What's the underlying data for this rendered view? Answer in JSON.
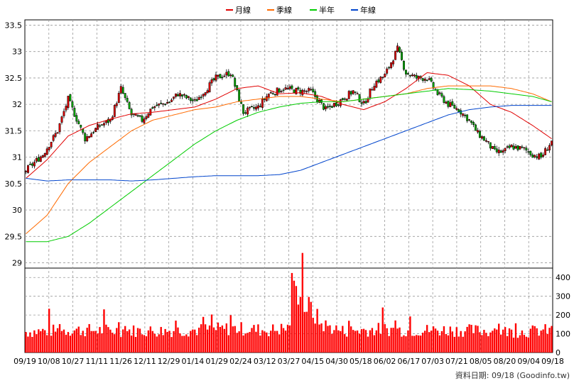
{
  "chart_data": {
    "type": "candlestick",
    "legend": [
      {
        "name": "月線",
        "color": "#e00000"
      },
      {
        "name": "季線",
        "color": "#ff6a00"
      },
      {
        "name": "半年",
        "color": "#00cc00"
      },
      {
        "name": "年線",
        "color": "#0044cc"
      }
    ],
    "legend_position": "top-center",
    "grid": true,
    "price_axis": {
      "ticks": [
        29,
        29.5,
        30,
        30.5,
        31,
        31.5,
        32,
        32.5,
        33,
        33.5
      ],
      "range": [
        28.9,
        33.6
      ]
    },
    "volume_axis": {
      "ticks": [
        0,
        100,
        200,
        300,
        400
      ],
      "range": [
        0,
        450
      ]
    },
    "x_tick_labels": [
      "09/19",
      "10/08",
      "10/27",
      "11/11",
      "11/26",
      "12/11",
      "12/29",
      "01/14",
      "01/29",
      "02/24",
      "03/12",
      "03/27",
      "04/15",
      "04/30",
      "05/18",
      "06/02",
      "06/17",
      "07/03",
      "07/21",
      "08/05",
      "08/20",
      "09/04",
      "09/18"
    ],
    "up_color": "#e00000",
    "down_color": "#00aa00",
    "volume_color": "#ff0000",
    "series": [
      {
        "name": "月線",
        "x": [
          0,
          10,
          20,
          30,
          40,
          50,
          60,
          70,
          80,
          90,
          100,
          110,
          120,
          130,
          140,
          150,
          160,
          170,
          180,
          190,
          200,
          210,
          220,
          230,
          240,
          249
        ],
        "values": [
          30.6,
          30.95,
          31.4,
          31.6,
          31.72,
          31.82,
          31.85,
          31.9,
          31.95,
          32.1,
          32.3,
          32.35,
          32.2,
          32.22,
          32.15,
          32.0,
          31.9,
          32.05,
          32.3,
          32.6,
          32.55,
          32.35,
          32.0,
          31.85,
          31.6,
          31.35
        ]
      },
      {
        "name": "季線",
        "x": [
          0,
          10,
          20,
          30,
          40,
          50,
          60,
          70,
          80,
          90,
          100,
          110,
          120,
          130,
          140,
          150,
          160,
          170,
          180,
          190,
          200,
          210,
          220,
          230,
          240,
          249
        ],
        "values": [
          29.55,
          29.9,
          30.5,
          30.9,
          31.2,
          31.5,
          31.7,
          31.8,
          31.9,
          31.95,
          32.05,
          32.1,
          32.15,
          32.15,
          32.1,
          32.05,
          32.1,
          32.15,
          32.2,
          32.3,
          32.35,
          32.35,
          32.35,
          32.3,
          32.2,
          32.05
        ]
      },
      {
        "name": "半年",
        "x": [
          0,
          10,
          20,
          30,
          40,
          50,
          60,
          70,
          80,
          90,
          100,
          110,
          120,
          130,
          140,
          150,
          160,
          170,
          180,
          190,
          200,
          210,
          220,
          230,
          240,
          249
        ],
        "values": [
          29.4,
          29.4,
          29.5,
          29.75,
          30.05,
          30.35,
          30.65,
          30.95,
          31.25,
          31.5,
          31.7,
          31.85,
          31.95,
          32.02,
          32.05,
          32.05,
          32.1,
          32.15,
          32.2,
          32.25,
          32.3,
          32.28,
          32.25,
          32.2,
          32.15,
          32.05
        ]
      },
      {
        "name": "年線",
        "x": [
          0,
          10,
          20,
          30,
          40,
          50,
          60,
          70,
          80,
          90,
          100,
          110,
          120,
          130,
          140,
          150,
          160,
          170,
          180,
          190,
          200,
          210,
          220,
          230,
          240,
          249
        ],
        "values": [
          30.6,
          30.55,
          30.57,
          30.57,
          30.57,
          30.55,
          30.57,
          30.6,
          30.63,
          30.65,
          30.65,
          30.65,
          30.67,
          30.75,
          30.9,
          31.05,
          31.2,
          31.35,
          31.5,
          31.65,
          31.8,
          31.9,
          31.95,
          31.98,
          31.98,
          31.98
        ]
      }
    ],
    "candle_anchor_closes": [
      [
        0,
        30.75
      ],
      [
        8,
        31.05
      ],
      [
        15,
        31.5
      ],
      [
        20,
        32.1
      ],
      [
        28,
        31.35
      ],
      [
        35,
        31.6
      ],
      [
        40,
        31.7
      ],
      [
        45,
        32.3
      ],
      [
        50,
        31.8
      ],
      [
        55,
        31.7
      ],
      [
        60,
        31.95
      ],
      [
        68,
        32.05
      ],
      [
        72,
        32.2
      ],
      [
        80,
        32.05
      ],
      [
        90,
        32.5
      ],
      [
        97,
        32.6
      ],
      [
        103,
        31.85
      ],
      [
        110,
        31.95
      ],
      [
        115,
        32.2
      ],
      [
        122,
        32.3
      ],
      [
        130,
        32.25
      ],
      [
        135,
        32.25
      ],
      [
        142,
        31.9
      ],
      [
        148,
        32.05
      ],
      [
        155,
        32.25
      ],
      [
        160,
        32.0
      ],
      [
        165,
        32.4
      ],
      [
        170,
        32.55
      ],
      [
        176,
        33.05
      ],
      [
        180,
        32.6
      ],
      [
        185,
        32.5
      ],
      [
        190,
        32.5
      ],
      [
        195,
        32.2
      ],
      [
        200,
        32.0
      ],
      [
        205,
        31.9
      ],
      [
        210,
        31.7
      ],
      [
        214,
        31.45
      ],
      [
        218,
        31.3
      ],
      [
        222,
        31.1
      ],
      [
        226,
        31.1
      ],
      [
        230,
        31.2
      ],
      [
        236,
        31.15
      ],
      [
        240,
        31.05
      ],
      [
        244,
        31.0
      ],
      [
        249,
        31.3
      ]
    ],
    "volume_anchors": [
      [
        0,
        110
      ],
      [
        20,
        120
      ],
      [
        40,
        118
      ],
      [
        60,
        115
      ],
      [
        80,
        120
      ],
      [
        100,
        128
      ],
      [
        115,
        118
      ],
      [
        124,
        130
      ],
      [
        128,
        300
      ],
      [
        130,
        380
      ],
      [
        132,
        250
      ],
      [
        135,
        230
      ],
      [
        140,
        150
      ],
      [
        150,
        115
      ],
      [
        160,
        120
      ],
      [
        170,
        125
      ],
      [
        180,
        118
      ],
      [
        200,
        120
      ],
      [
        220,
        115
      ],
      [
        235,
        110
      ],
      [
        249,
        120
      ]
    ],
    "footer": "資料日期: 09/18  (Goodinfo.tw)"
  }
}
